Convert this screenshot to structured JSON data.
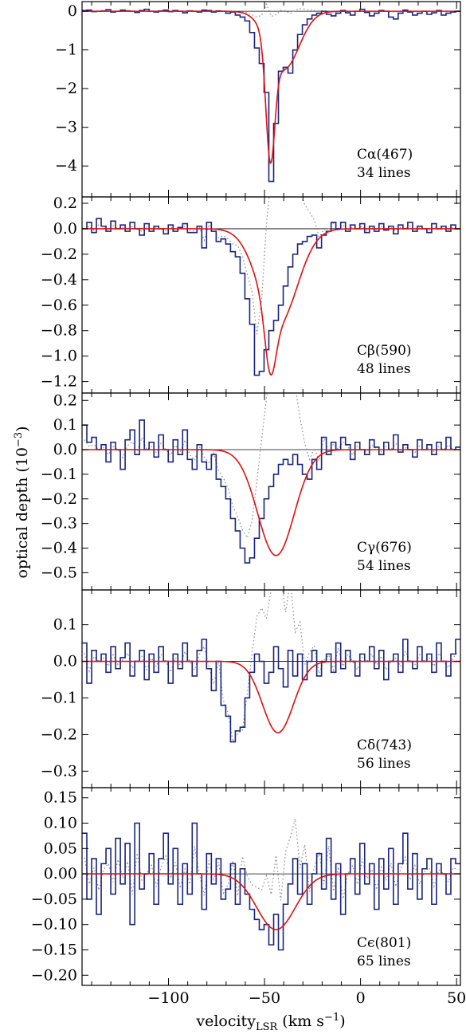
{
  "colors": {
    "data": "#1a237e",
    "fit": "#e01010",
    "residual": "#888888",
    "axis": "#000000"
  },
  "chart_data": [
    {
      "type": "line",
      "label": "Cα(467)",
      "lines_label": "34 lines",
      "ylim": [
        -4.8,
        0.25
      ],
      "yticks": [
        0,
        -1,
        -2,
        -3,
        -4
      ],
      "ytick_labels": [
        "0",
        "−1",
        "−2",
        "−3",
        "−4"
      ],
      "xlim": [
        -145,
        52
      ],
      "fit": {
        "components": [
          {
            "center": -47,
            "amp": -2.9,
            "sigma": 2.3
          },
          {
            "center": -40,
            "amp": -1.5,
            "sigma": 8
          }
        ]
      },
      "data_values": [
        0.02,
        0.03,
        -0.01,
        0.0,
        0.01,
        0.04,
        -0.02,
        0.0,
        0.03,
        0.01,
        0.0,
        -0.03,
        0.02,
        0.05,
        0.0,
        -0.02,
        0.01,
        0.03,
        -0.01,
        0.02,
        0.0,
        -0.04,
        0.01,
        0.0,
        -0.02,
        0.03,
        0.02,
        -0.02,
        0.01,
        0.0,
        -0.05,
        -0.02,
        -0.1,
        -0.15,
        -0.25,
        -0.55,
        -0.95,
        -1.35,
        -2.1,
        -4.4,
        -2.9,
        -1.55,
        -1.45,
        -1.6,
        -1.0,
        -0.6,
        -0.35,
        -0.2,
        -0.1,
        -0.05,
        0.0,
        -0.08,
        -0.12,
        -0.05,
        0.02,
        -0.04,
        -0.1,
        0.0,
        0.05,
        -0.03,
        -0.12,
        -0.05,
        0.02,
        0.0,
        -0.15,
        -0.2,
        -0.05,
        0.03,
        -0.02,
        -0.1,
        -0.05,
        0.0,
        -0.08,
        -0.04,
        0.02,
        -0.1,
        -0.05,
        -0.02,
        0.0
      ],
      "residual_scale": 0.2
    },
    {
      "type": "line",
      "label": "Cβ(590)",
      "lines_label": "48 lines",
      "ylim": [
        -1.29,
        0.25
      ],
      "yticks": [
        0.2,
        0.0,
        -0.2,
        -0.4,
        -0.6,
        -0.8,
        -1.0,
        -1.2
      ],
      "ytick_labels": [
        "0.2",
        "0.0",
        "−0.2",
        "−0.4",
        "−0.6",
        "−0.8",
        "−1.0",
        "−1.2"
      ],
      "xlim": [
        -145,
        52
      ],
      "fit": {
        "components": [
          {
            "center": -47,
            "amp": -0.45,
            "sigma": 2.8
          },
          {
            "center": -43,
            "amp": -0.75,
            "sigma": 10
          }
        ]
      },
      "data_values": [
        0.0,
        0.05,
        -0.03,
        0.08,
        0.02,
        -0.02,
        0.06,
        0.0,
        0.03,
        -0.02,
        0.05,
        0.0,
        -0.05,
        0.04,
        -0.02,
        0.02,
        0.0,
        -0.04,
        0.03,
        -0.02,
        0.01,
        0.04,
        -0.03,
        -0.03,
        0.02,
        -0.15,
        0.05,
        -0.02,
        -0.1,
        -0.08,
        -0.12,
        -0.18,
        -0.22,
        -0.35,
        -0.55,
        -0.75,
        -1.15,
        -1.12,
        -0.95,
        -0.8,
        -0.72,
        -0.6,
        -0.45,
        -0.3,
        -0.2,
        -0.12,
        -0.1,
        -0.06,
        -0.05,
        -0.15,
        -0.05,
        -0.02,
        0.05,
        0.0,
        0.05,
        -0.02,
        0.03,
        0.0,
        0.04,
        -0.03,
        0.02,
        -0.02,
        0.04,
        -0.01,
        0.02,
        -0.04,
        0.03,
        0.0,
        0.05,
        -0.02,
        0.02,
        0.0,
        -0.03,
        0.04,
        0.0,
        0.02,
        -0.02,
        0.03,
        0.0
      ],
      "residual_scale": 0.9
    },
    {
      "type": "line",
      "label": "Cγ(676)",
      "lines_label": "54 lines",
      "ylim": [
        -0.57,
        0.23
      ],
      "yticks": [
        0.2,
        0.1,
        0.0,
        -0.1,
        -0.2,
        -0.3,
        -0.4,
        -0.5
      ],
      "ytick_labels": [
        "0.2",
        "0.1",
        "0.0",
        "−0.1",
        "−0.2",
        "−0.3",
        "−0.4",
        "−0.5"
      ],
      "xlim": [
        -145,
        52
      ],
      "fit": {
        "components": [
          {
            "center": -44,
            "amp": -0.43,
            "sigma": 9.5
          }
        ]
      },
      "data_values": [
        0.1,
        0.03,
        0.05,
        0.0,
        0.02,
        -0.05,
        0.03,
        0.0,
        -0.08,
        0.04,
        0.08,
        -0.02,
        0.12,
        0.0,
        0.03,
        -0.03,
        0.06,
        0.0,
        -0.05,
        0.04,
        -0.02,
        0.08,
        -0.04,
        -0.08,
        0.02,
        -0.05,
        -0.08,
        -0.02,
        -0.12,
        -0.15,
        -0.2,
        -0.28,
        -0.33,
        -0.4,
        -0.46,
        -0.44,
        -0.36,
        -0.28,
        -0.2,
        -0.15,
        -0.1,
        -0.06,
        -0.04,
        -0.06,
        -0.02,
        -0.06,
        -0.1,
        -0.12,
        -0.04,
        -0.08,
        0.05,
        -0.02,
        0.03,
        0.0,
        0.05,
        0.02,
        -0.04,
        0.03,
        0.0,
        -0.02,
        0.04,
        0.01,
        -0.02,
        0.03,
        0.0,
        0.06,
        -0.01,
        0.02,
        0.0,
        -0.03,
        0.04,
        0.0,
        0.02,
        -0.02,
        0.03,
        0.0,
        0.05,
        0.0,
        0.01
      ],
      "residual_scale": 0.9
    },
    {
      "type": "line",
      "label": "Cδ(743)",
      "lines_label": "56 lines",
      "ylim": [
        -0.345,
        0.195
      ],
      "yticks": [
        0.1,
        0.0,
        -0.1,
        -0.2,
        -0.3
      ],
      "ytick_labels": [
        "0.1",
        "0.0",
        "−0.1",
        "−0.2",
        "−0.3"
      ],
      "xlim": [
        -145,
        52
      ],
      "fit": {
        "components": [
          {
            "center": -43,
            "amp": -0.195,
            "sigma": 8
          }
        ]
      },
      "data_values": [
        0.05,
        -0.06,
        0.03,
        0.0,
        0.02,
        -0.03,
        0.04,
        -0.02,
        0.01,
        0.05,
        -0.04,
        0.0,
        0.03,
        -0.05,
        0.02,
        -0.03,
        0.04,
        0.0,
        -0.06,
        0.02,
        -0.02,
        0.05,
        0.0,
        -0.04,
        0.03,
        0.06,
        -0.02,
        -0.08,
        0.0,
        -0.12,
        -0.15,
        -0.22,
        -0.19,
        -0.18,
        -0.1,
        -0.03,
        0.02,
        0.0,
        -0.06,
        -0.03,
        0.04,
        -0.02,
        -0.07,
        0.03,
        -0.04,
        0.02,
        -0.05,
        0.0,
        0.03,
        -0.04,
        0.0,
        0.02,
        -0.03,
        0.05,
        -0.02,
        0.03,
        0.0,
        -0.04,
        0.02,
        0.0,
        0.04,
        -0.02,
        0.03,
        -0.05,
        0.0,
        0.02,
        -0.03,
        0.06,
        0.0,
        -0.02,
        0.04,
        0.0,
        0.02,
        -0.03,
        0.05,
        0.0,
        -0.04,
        0.02,
        0.06
      ],
      "residual_scale": 1.0
    },
    {
      "type": "line",
      "label": "Cϵ(801)",
      "lines_label": "65 lines",
      "ylim": [
        -0.22,
        0.17
      ],
      "yticks": [
        0.15,
        0.1,
        0.05,
        0.0,
        -0.05,
        -0.1,
        -0.15,
        -0.2
      ],
      "ytick_labels": [
        "0.15",
        "0.10",
        "0.05",
        "0.00",
        "−0.05",
        "−0.10",
        "−0.15",
        "−0.20"
      ],
      "xlim": [
        -145,
        52
      ],
      "fit": {
        "components": [
          {
            "center": -44,
            "amp": -0.11,
            "sigma": 10
          }
        ]
      },
      "data_values": [
        0.08,
        -0.05,
        0.03,
        -0.08,
        0.02,
        0.05,
        -0.04,
        0.07,
        -0.02,
        0.06,
        -0.1,
        0.1,
        -0.03,
        0.0,
        0.04,
        -0.06,
        0.03,
        0.08,
        -0.02,
        0.05,
        -0.06,
        0.02,
        -0.04,
        0.1,
        0.0,
        -0.07,
        0.04,
        -0.02,
        0.03,
        -0.05,
        -0.03,
        0.02,
        -0.06,
        0.01,
        -0.04,
        -0.07,
        -0.09,
        -0.11,
        -0.1,
        -0.14,
        -0.08,
        -0.15,
        -0.06,
        -0.02,
        0.03,
        -0.04,
        0.02,
        -0.06,
        0.0,
        0.04,
        -0.03,
        0.07,
        -0.05,
        0.02,
        -0.08,
        0.0,
        0.03,
        -0.04,
        0.06,
        -0.02,
        0.02,
        -0.07,
        0.03,
        -0.03,
        0.05,
        -0.06,
        0.02,
        0.08,
        -0.03,
        0.04,
        -0.05,
        0.01,
        0.03,
        -0.06,
        0.02,
        0.0,
        -0.04,
        0.03,
        0.02
      ],
      "residual_scale": 0.9
    }
  ],
  "x_axis": {
    "ticks": [
      -100,
      -50,
      0,
      50
    ],
    "tick_labels": [
      "−100",
      "−50",
      "0",
      "50"
    ]
  },
  "labels": {
    "ylabel": "optical depth (10",
    "ylabel_exp": "−3",
    "ylabel_end": ")",
    "xlabel": "velocity",
    "xlabel_sub": "LSR",
    "xlabel_units": " (km s",
    "xlabel_units_exp": "−1",
    "xlabel_units_end": ")"
  }
}
